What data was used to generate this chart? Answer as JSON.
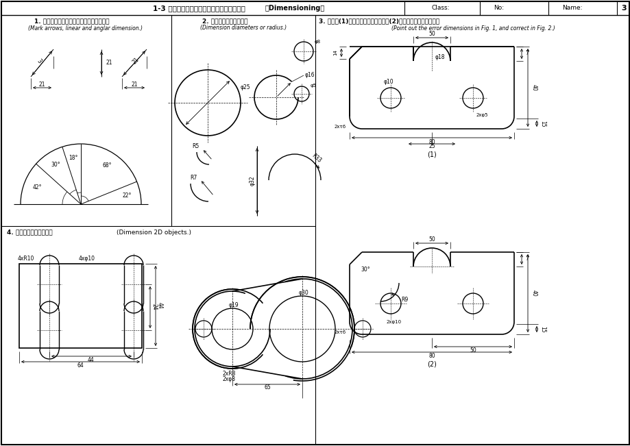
{
  "title_cn": "1-3 标注尺寸，尺寸数值从图中量取，并圆整",
  "title_en": "（Dimensioning）",
  "page_num": "3",
  "sec1_title": "1. 标注出尺寸箭头、线性尺寸及角度尺寸。",
  "sec1_sub": "(Mark arrows, linear and anglar dimension.)",
  "sec2_title": "2. 标注直径或半径尺寸。",
  "sec2_sub": "(Dimension diameters or radius.)",
  "sec3_title": "3. 指出图(1)中标注错误的尺寸，在图(2)中标注完整正确的尺寸。",
  "sec3_sub": "(Point out the error dimensions in Fig. 1, and correct in Fig. 2.)",
  "sec4_title": "4. 标注平面图形的尺寸。",
  "sec4_title_en": "(Dimension 2D objects.)",
  "bg": "#ffffff",
  "lc": "#000000"
}
